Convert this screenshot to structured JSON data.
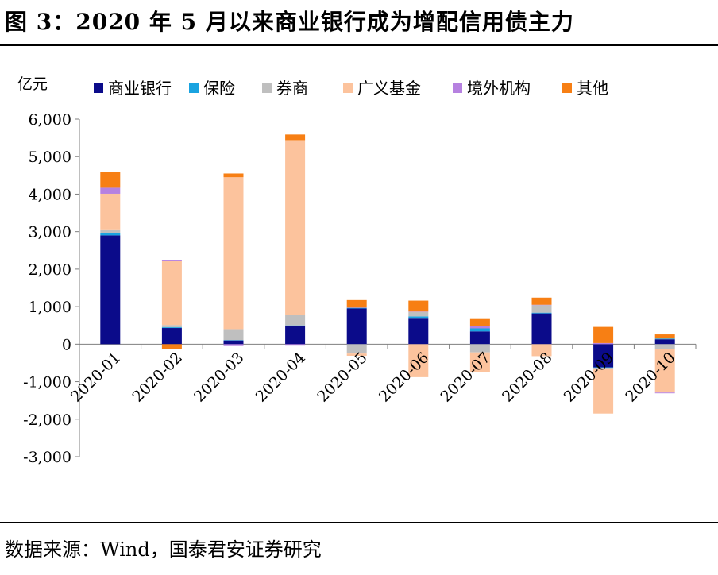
{
  "title": "图 3：2020 年 5 月以来商业银行成为增配信用债主力",
  "source": "数据来源：Wind，国泰君安证券研究",
  "chart_data": {
    "type": "bar",
    "stacked": true,
    "unit_label": "亿元",
    "categories": [
      "2020-01",
      "2020-02",
      "2020-03",
      "2020-04",
      "2020-05",
      "2020-06",
      "2020-07",
      "2020-08",
      "2020-09",
      "2020-10"
    ],
    "ylim": [
      -3000,
      6000
    ],
    "yticks": [
      "-3,000",
      "-2,000",
      "-1,000",
      "0",
      "1,000",
      "2,000",
      "3,000",
      "4,000",
      "5,000",
      "6,000"
    ],
    "ytick_values": [
      -3000,
      -2000,
      -1000,
      0,
      1000,
      2000,
      3000,
      4000,
      5000,
      6000
    ],
    "legend_position": "top",
    "series": [
      {
        "name": "商业银行",
        "color": "#0b0b8a",
        "values": [
          2900,
          430,
          100,
          490,
          950,
          680,
          340,
          820,
          -620,
          130
        ]
      },
      {
        "name": "保险",
        "color": "#1aa3e0",
        "values": [
          60,
          20,
          10,
          10,
          20,
          60,
          80,
          20,
          -10,
          20
        ]
      },
      {
        "name": "券商",
        "color": "#bfbfbf",
        "values": [
          100,
          60,
          290,
          290,
          -250,
          120,
          -220,
          200,
          -40,
          -130
        ]
      },
      {
        "name": "广义基金",
        "color": "#fcc39d",
        "values": [
          950,
          1700,
          4050,
          4650,
          -60,
          -880,
          -520,
          -320,
          -1180,
          -1160
        ]
      },
      {
        "name": "境外机构",
        "color": "#b681e0",
        "values": [
          160,
          20,
          -50,
          -40,
          5,
          10,
          70,
          10,
          30,
          -20
        ]
      },
      {
        "name": "其他",
        "color": "#f77f14",
        "values": [
          430,
          -130,
          100,
          150,
          200,
          290,
          180,
          190,
          430,
          110
        ]
      }
    ]
  }
}
